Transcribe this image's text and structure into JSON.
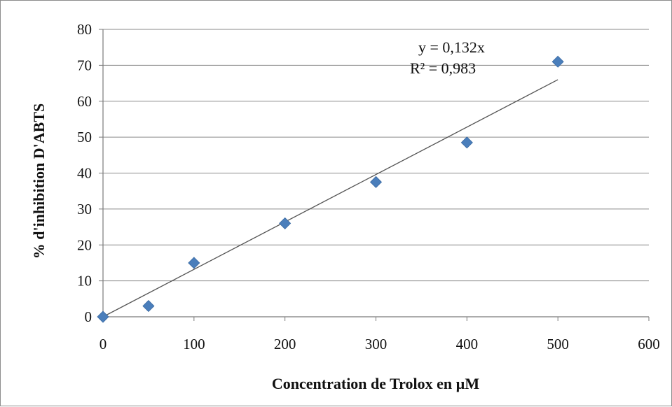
{
  "chart_data": {
    "type": "scatter",
    "xlabel": "Concentration de Trolox en µM",
    "ylabel": "% d'inhibition D'ABTS",
    "xlim": [
      0,
      600
    ],
    "ylim": [
      0,
      80
    ],
    "x_ticks": [
      0,
      100,
      200,
      300,
      400,
      500,
      600
    ],
    "y_ticks": [
      0,
      10,
      20,
      30,
      40,
      50,
      60,
      70,
      80
    ],
    "grid": "horizontal",
    "legend": "none",
    "series": [
      {
        "color": "#4a7ebb",
        "marker": "diamond",
        "points": [
          {
            "x": 0,
            "y": 0
          },
          {
            "x": 50,
            "y": 3
          },
          {
            "x": 100,
            "y": 15
          },
          {
            "x": 200,
            "y": 26
          },
          {
            "x": 300,
            "y": 37.5
          },
          {
            "x": 400,
            "y": 48.5
          },
          {
            "x": 500,
            "y": 71
          }
        ]
      }
    ],
    "trendline": {
      "type": "linear",
      "slope": 0.132,
      "intercept": 0,
      "x_range": [
        0,
        500
      ],
      "color": "#555555",
      "equation": "y = 0,132x",
      "r_squared": "R² = 0,983"
    }
  }
}
